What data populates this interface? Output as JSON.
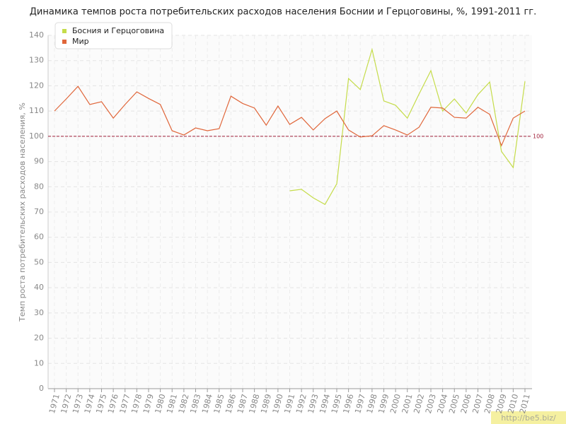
{
  "chart_data": {
    "type": "line",
    "title": "Динамика темпов роста потребительских расходов населения Боснии и Герцоговины, %, 1991-2011 гг.",
    "y_label": "Темп роста потребительских расходов населения, %",
    "categories": [
      "1971",
      "1972",
      "1973",
      "1974",
      "1975",
      "1976",
      "1977",
      "1978",
      "1979",
      "1980",
      "1981",
      "1982",
      "1983",
      "1984",
      "1985",
      "1986",
      "1987",
      "1988",
      "1989",
      "1990",
      "1991",
      "1992",
      "1993",
      "1994",
      "1995",
      "1996",
      "1997",
      "1998",
      "1999",
      "2000",
      "2001",
      "2002",
      "2003",
      "2004",
      "2005",
      "2006",
      "2007",
      "2008",
      "2009",
      "2010",
      "2011"
    ],
    "series": [
      {
        "name": "Босния и Герцоговина",
        "color": "#c5dc4a",
        "values": [
          null,
          null,
          null,
          null,
          null,
          null,
          null,
          null,
          null,
          null,
          null,
          null,
          null,
          null,
          null,
          null,
          null,
          null,
          null,
          null,
          78.4,
          79,
          75.6,
          73,
          81.2,
          122.9,
          118.5,
          134.4,
          114,
          112.3,
          107.2,
          116.8,
          126,
          110,
          114.8,
          109.2,
          116.5,
          121.5,
          94,
          87.6,
          121.8
        ]
      },
      {
        "name": "Мир",
        "color": "#e0663a",
        "values": [
          110,
          114.8,
          119.8,
          112.6,
          113.7,
          107.2,
          112.6,
          117.6,
          115,
          112.6,
          102.2,
          100.5,
          103.3,
          102.2,
          103,
          115.9,
          113,
          111.2,
          104.4,
          112,
          104.7,
          107.5,
          102.5,
          107,
          110,
          102.5,
          99.7,
          100.2,
          104.2,
          102.5,
          100.5,
          103.6,
          111.5,
          111.2,
          107.5,
          107.2,
          111.5,
          108.7,
          96.3,
          107.2,
          110
        ]
      }
    ],
    "ylim": [
      0,
      140
    ],
    "yticks": [
      0,
      10,
      20,
      30,
      40,
      50,
      60,
      70,
      80,
      90,
      100,
      110,
      120,
      130,
      140
    ],
    "grid": true,
    "legend": "top-left",
    "reference_line": 100,
    "reference_color": "#a0203a",
    "watermark": "http://be5.biz/"
  }
}
